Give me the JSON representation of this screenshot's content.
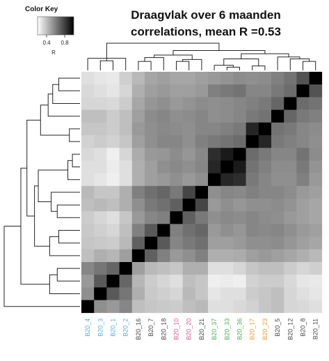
{
  "chart_data": {
    "type": "heatmap",
    "title": "Draagvlak over 6 maanden",
    "subtitle": "correlations, mean R =0.53",
    "color_key": {
      "title": "Color Key",
      "ticks": [
        "0.4",
        "0.8"
      ],
      "tick_values": [
        0.4,
        0.8
      ],
      "axis_label": "R",
      "range": [
        0.2,
        1.0
      ],
      "low_color": "#ffffff",
      "high_color": "#000000"
    },
    "columns": [
      {
        "label": "B20_4",
        "color": "#5aaadc"
      },
      {
        "label": "B20_3",
        "color": "#5aaadc"
      },
      {
        "label": "B20_1",
        "color": "#5aaadc"
      },
      {
        "label": "B20_2",
        "color": "#5aaadc"
      },
      {
        "label": "B20_16",
        "color": "#444444"
      },
      {
        "label": "B20_7",
        "color": "#444444"
      },
      {
        "label": "B20_18",
        "color": "#444444"
      },
      {
        "label": "B20_10",
        "color": "#cc5c8c"
      },
      {
        "label": "B20_20",
        "color": "#cc5c8c"
      },
      {
        "label": "B20_21",
        "color": "#444444"
      },
      {
        "label": "B20_37",
        "color": "#4caa54"
      },
      {
        "label": "B20_33",
        "color": "#4caa54"
      },
      {
        "label": "B20_36",
        "color": "#4caa54"
      },
      {
        "label": "B20_17",
        "color": "#e09a3a"
      },
      {
        "label": "B20_23",
        "color": "#e09a3a"
      },
      {
        "label": "B20_5",
        "color": "#444444"
      },
      {
        "label": "B20_12",
        "color": "#444444"
      },
      {
        "label": "B20_8",
        "color": "#444444"
      },
      {
        "label": "B20_11",
        "color": "#444444"
      }
    ],
    "values": [
      [
        1.0,
        0.55,
        0.52,
        0.58,
        0.4,
        0.38,
        0.37,
        0.36,
        0.4,
        0.42,
        0.3,
        0.3,
        0.32,
        0.34,
        0.38,
        0.4,
        0.33,
        0.32,
        0.3
      ],
      [
        0.55,
        1.0,
        0.72,
        0.63,
        0.45,
        0.37,
        0.35,
        0.33,
        0.42,
        0.38,
        0.28,
        0.3,
        0.3,
        0.36,
        0.38,
        0.4,
        0.33,
        0.3,
        0.28
      ],
      [
        0.52,
        0.72,
        1.0,
        0.68,
        0.43,
        0.36,
        0.33,
        0.3,
        0.4,
        0.38,
        0.25,
        0.26,
        0.25,
        0.34,
        0.36,
        0.36,
        0.32,
        0.28,
        0.27
      ],
      [
        0.58,
        0.63,
        0.68,
        1.0,
        0.5,
        0.42,
        0.4,
        0.38,
        0.45,
        0.45,
        0.3,
        0.3,
        0.33,
        0.38,
        0.4,
        0.4,
        0.36,
        0.33,
        0.35
      ],
      [
        0.4,
        0.45,
        0.43,
        0.5,
        1.0,
        0.7,
        0.6,
        0.52,
        0.55,
        0.6,
        0.45,
        0.45,
        0.46,
        0.5,
        0.52,
        0.5,
        0.48,
        0.45,
        0.42
      ],
      [
        0.38,
        0.37,
        0.36,
        0.42,
        0.7,
        1.0,
        0.72,
        0.58,
        0.62,
        0.65,
        0.5,
        0.5,
        0.52,
        0.55,
        0.55,
        0.56,
        0.53,
        0.5,
        0.48
      ],
      [
        0.37,
        0.35,
        0.33,
        0.4,
        0.6,
        0.72,
        1.0,
        0.6,
        0.65,
        0.68,
        0.52,
        0.55,
        0.53,
        0.58,
        0.57,
        0.58,
        0.55,
        0.52,
        0.5
      ],
      [
        0.36,
        0.33,
        0.3,
        0.38,
        0.52,
        0.58,
        0.6,
        1.0,
        0.7,
        0.62,
        0.55,
        0.57,
        0.56,
        0.58,
        0.56,
        0.55,
        0.52,
        0.5,
        0.48
      ],
      [
        0.4,
        0.42,
        0.4,
        0.45,
        0.55,
        0.62,
        0.65,
        0.7,
        1.0,
        0.78,
        0.52,
        0.55,
        0.53,
        0.55,
        0.55,
        0.56,
        0.54,
        0.5,
        0.48
      ],
      [
        0.42,
        0.38,
        0.38,
        0.45,
        0.6,
        0.65,
        0.68,
        0.62,
        0.78,
        1.0,
        0.55,
        0.58,
        0.57,
        0.6,
        0.58,
        0.58,
        0.56,
        0.52,
        0.5
      ],
      [
        0.3,
        0.28,
        0.25,
        0.3,
        0.45,
        0.5,
        0.52,
        0.55,
        0.52,
        0.55,
        1.0,
        0.88,
        0.86,
        0.62,
        0.58,
        0.55,
        0.55,
        0.6,
        0.52
      ],
      [
        0.3,
        0.3,
        0.26,
        0.3,
        0.45,
        0.5,
        0.55,
        0.57,
        0.55,
        0.58,
        0.88,
        1.0,
        0.92,
        0.64,
        0.6,
        0.56,
        0.56,
        0.62,
        0.54
      ],
      [
        0.32,
        0.3,
        0.25,
        0.33,
        0.46,
        0.52,
        0.53,
        0.56,
        0.53,
        0.57,
        0.86,
        0.92,
        1.0,
        0.66,
        0.62,
        0.58,
        0.58,
        0.64,
        0.56
      ],
      [
        0.34,
        0.36,
        0.34,
        0.38,
        0.5,
        0.55,
        0.58,
        0.58,
        0.55,
        0.6,
        0.62,
        0.64,
        0.66,
        1.0,
        0.88,
        0.62,
        0.6,
        0.58,
        0.55
      ],
      [
        0.38,
        0.38,
        0.36,
        0.4,
        0.52,
        0.55,
        0.57,
        0.56,
        0.55,
        0.58,
        0.58,
        0.6,
        0.62,
        0.88,
        1.0,
        0.64,
        0.62,
        0.58,
        0.56
      ],
      [
        0.4,
        0.4,
        0.36,
        0.4,
        0.5,
        0.56,
        0.58,
        0.55,
        0.56,
        0.58,
        0.55,
        0.56,
        0.58,
        0.62,
        0.64,
        1.0,
        0.68,
        0.62,
        0.6
      ],
      [
        0.33,
        0.33,
        0.32,
        0.36,
        0.48,
        0.53,
        0.55,
        0.52,
        0.54,
        0.56,
        0.55,
        0.56,
        0.58,
        0.6,
        0.62,
        0.68,
        1.0,
        0.66,
        0.64
      ],
      [
        0.32,
        0.3,
        0.28,
        0.33,
        0.45,
        0.5,
        0.52,
        0.5,
        0.5,
        0.52,
        0.6,
        0.62,
        0.64,
        0.58,
        0.58,
        0.62,
        0.66,
        1.0,
        0.74
      ],
      [
        0.3,
        0.28,
        0.27,
        0.35,
        0.42,
        0.48,
        0.5,
        0.48,
        0.48,
        0.5,
        0.52,
        0.54,
        0.56,
        0.55,
        0.56,
        0.6,
        0.64,
        0.74,
        1.0
      ]
    ],
    "col_dendrogram": [
      {
        "l": 1,
        "r": 2,
        "h": 0.3
      },
      {
        "l": 3,
        "r": 0,
        "h": 0.38
      },
      {
        "l": -2,
        "r": -1,
        "h": 0.5
      },
      {
        "l": 4,
        "r": 5,
        "h": 0.28
      },
      {
        "l": -4,
        "r": 6,
        "h": 0.4
      },
      {
        "l": 7,
        "r": 8,
        "h": 0.28
      },
      {
        "l": -6,
        "r": 9,
        "h": 0.34
      },
      {
        "l": -5,
        "r": -7,
        "h": 0.48
      },
      {
        "l": 11,
        "r": 12,
        "h": 0.1
      },
      {
        "l": 10,
        "r": -9,
        "h": 0.16
      },
      {
        "l": 13,
        "r": 14,
        "h": 0.14
      },
      {
        "l": -10,
        "r": -11,
        "h": 0.36
      },
      {
        "l": 17,
        "r": 18,
        "h": 0.28
      },
      {
        "l": 16,
        "r": -13,
        "h": 0.36
      },
      {
        "l": 15,
        "r": -14,
        "h": 0.42
      },
      {
        "l": -12,
        "r": -15,
        "h": 0.52
      },
      {
        "l": -8,
        "r": -16,
        "h": 0.62
      },
      {
        "l": -3,
        "r": -17,
        "h": 0.85
      }
    ],
    "row_dendrogram": [
      {
        "l": 17,
        "r": 18,
        "h": 0.28
      },
      {
        "l": 16,
        "r": -1,
        "h": 0.36
      },
      {
        "l": 15,
        "r": -2,
        "h": 0.42
      },
      {
        "l": 13,
        "r": 14,
        "h": 0.14
      },
      {
        "l": -3,
        "r": -4,
        "h": 0.52
      },
      {
        "l": 11,
        "r": 12,
        "h": 0.1
      },
      {
        "l": 10,
        "r": -6,
        "h": 0.16
      },
      {
        "l": 7,
        "r": 8,
        "h": 0.3
      },
      {
        "l": -8,
        "r": 9,
        "h": 0.38
      },
      {
        "l": -7,
        "r": -9,
        "h": 0.55
      },
      {
        "l": 5,
        "r": 6,
        "h": 0.28
      },
      {
        "l": 4,
        "r": -11,
        "h": 0.4
      },
      {
        "l": -10,
        "r": -12,
        "h": 0.6
      },
      {
        "l": -5,
        "r": -13,
        "h": 0.7
      },
      {
        "l": 2,
        "r": 3,
        "h": 0.3
      },
      {
        "l": 1,
        "r": -15,
        "h": 0.4
      },
      {
        "l": -14,
        "r": -16,
        "h": 0.78
      },
      {
        "l": 0,
        "r": -17,
        "h": 1.0
      }
    ],
    "row_order_from_top": [
      18,
      17,
      16,
      15,
      14,
      13,
      12,
      11,
      10,
      9,
      8,
      7,
      6,
      5,
      4,
      3,
      2,
      1,
      0
    ]
  }
}
